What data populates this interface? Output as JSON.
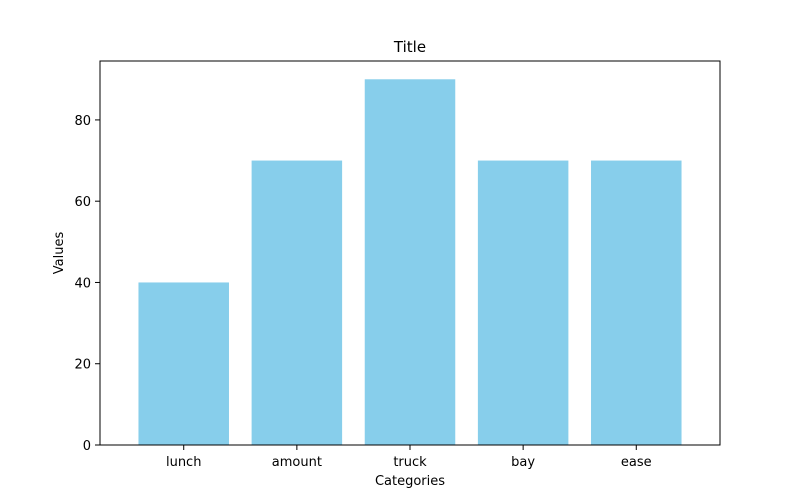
{
  "chart_data": {
    "type": "bar",
    "title": "Title",
    "xlabel": "Categories",
    "ylabel": "Values",
    "categories": [
      "lunch",
      "amount",
      "truck",
      "bay",
      "ease"
    ],
    "values": [
      40,
      70,
      90,
      70,
      70
    ],
    "ylim": [
      0,
      94.5
    ],
    "yticks": [
      0,
      20,
      40,
      60,
      80
    ],
    "grid": false,
    "legend": "none",
    "bar_color": "#87CEEB"
  }
}
